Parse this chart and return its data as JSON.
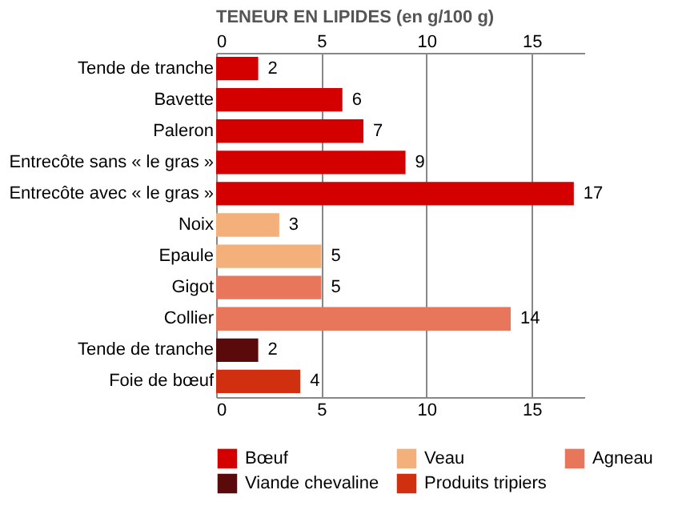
{
  "chart_data": {
    "type": "bar",
    "orientation": "horizontal",
    "title": "TENEUR EN LIPIDES (en g/100 g)",
    "categories": [
      "Tende de tranche",
      "Bavette",
      "Paleron",
      "Entrecôte sans « le gras »",
      "Entrecôte avec « le gras »",
      "Noix",
      "Epaule",
      "Gigot",
      "Collier",
      "Tende de tranche",
      "Foie de bœuf"
    ],
    "series": [
      {
        "name": "Bœuf",
        "color": "#d40000",
        "values": [
          2,
          6,
          7,
          9,
          17,
          null,
          null,
          null,
          null,
          null,
          null
        ]
      },
      {
        "name": "Veau",
        "color": "#f4b07a",
        "values": [
          null,
          null,
          null,
          null,
          null,
          3,
          5,
          null,
          null,
          null,
          null
        ]
      },
      {
        "name": "Agneau",
        "color": "#e8765a",
        "values": [
          null,
          null,
          null,
          null,
          null,
          null,
          null,
          5,
          14,
          null,
          null
        ]
      },
      {
        "name": "Viande chevaline",
        "color": "#5a0a0a",
        "values": [
          null,
          null,
          null,
          null,
          null,
          null,
          null,
          null,
          null,
          2,
          null
        ]
      },
      {
        "name": "Produits tripiers",
        "color": "#d03010",
        "values": [
          null,
          null,
          null,
          null,
          null,
          null,
          null,
          null,
          null,
          null,
          4
        ]
      }
    ],
    "xlim": [
      0,
      17.5
    ],
    "xticks": [
      0,
      5,
      10,
      15
    ],
    "x2lim": [
      0,
      17.5
    ],
    "x2ticks": [
      0,
      5,
      10,
      15
    ],
    "grid": "x",
    "legend": "bottom",
    "data_labels": true
  }
}
